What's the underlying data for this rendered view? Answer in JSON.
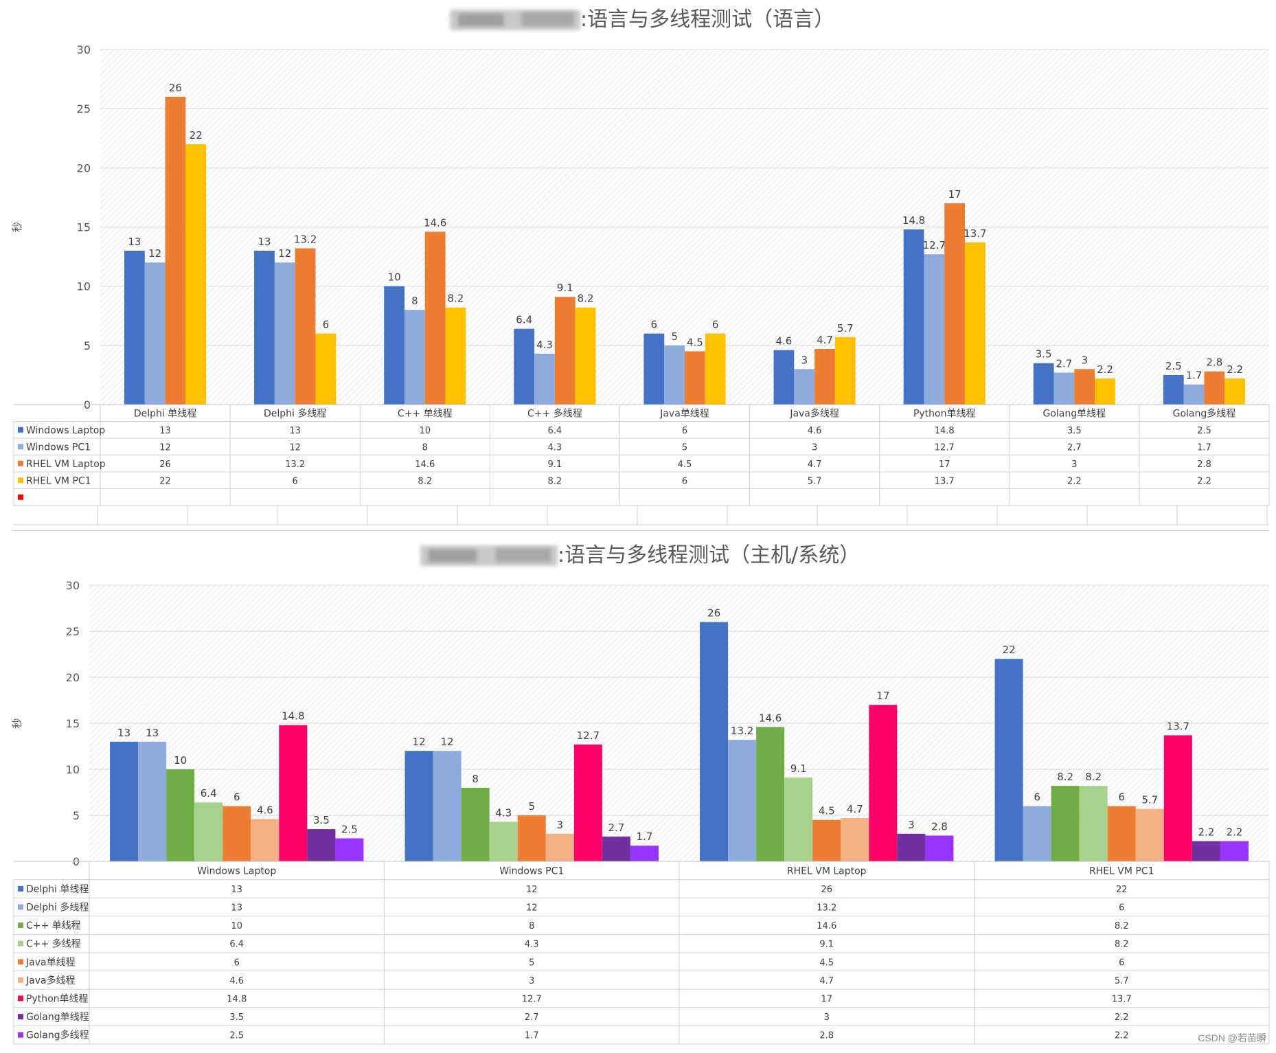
{
  "watermark": "CSDN @若苗瞬",
  "chart_data": [
    {
      "type": "bar",
      "title": ":语言与多线程测试（语言）",
      "ylabel": "秒",
      "ylim": [
        0,
        30
      ],
      "yticks": [
        0,
        5,
        10,
        15,
        20,
        25,
        30
      ],
      "grid": true,
      "legend_placement": "data-table",
      "categories": [
        "Delphi 单线程",
        "Delphi 多线程",
        "C++ 单线程",
        "C++ 多线程",
        "Java单线程",
        "Java多线程",
        "Python单线程",
        "Golang单线程",
        "Golang多线程"
      ],
      "series": [
        {
          "name": "Windows Laptop",
          "color": "#4472C4",
          "values": [
            13,
            13,
            10,
            6.4,
            6,
            4.6,
            14.8,
            3.5,
            2.5
          ]
        },
        {
          "name": "Windows PC1",
          "color": "#8FAADC",
          "values": [
            12,
            12,
            8,
            4.3,
            5,
            3,
            12.7,
            2.7,
            1.7
          ]
        },
        {
          "name": "RHEL VM Laptop",
          "color": "#ED7D31",
          "values": [
            26,
            13.2,
            14.6,
            9.1,
            4.5,
            4.7,
            17,
            3,
            2.8
          ]
        },
        {
          "name": "RHEL VM PC1",
          "color": "#FFC000",
          "values": [
            22,
            6,
            8.2,
            8.2,
            6,
            5.7,
            13.7,
            2.2,
            2.2
          ]
        }
      ],
      "extra_legend_color": "#FF0000"
    },
    {
      "type": "bar",
      "title": ":语言与多线程测试（主机/系统）",
      "ylabel": "秒",
      "ylim": [
        0,
        30
      ],
      "yticks": [
        0,
        5,
        10,
        15,
        20,
        25,
        30
      ],
      "grid": true,
      "legend_placement": "data-table",
      "categories": [
        "Windows Laptop",
        "Windows PC1",
        "RHEL VM Laptop",
        "RHEL VM PC1"
      ],
      "series": [
        {
          "name": "Delphi 单线程",
          "color": "#4472C4",
          "values": [
            13,
            12,
            26,
            22
          ]
        },
        {
          "name": "Delphi 多线程",
          "color": "#8FAADC",
          "values": [
            13,
            12,
            13.2,
            6
          ]
        },
        {
          "name": "C++ 单线程",
          "color": "#70AD47",
          "values": [
            10,
            8,
            14.6,
            8.2
          ]
        },
        {
          "name": "C++ 多线程",
          "color": "#A9D18E",
          "values": [
            6.4,
            4.3,
            9.1,
            8.2
          ]
        },
        {
          "name": "Java单线程",
          "color": "#ED7D31",
          "values": [
            6,
            5,
            4.5,
            6
          ]
        },
        {
          "name": "Java多线程",
          "color": "#F4B183",
          "values": [
            4.6,
            3,
            4.7,
            5.7
          ]
        },
        {
          "name": "Python单线程",
          "color": "#FF0066",
          "values": [
            14.8,
            12.7,
            17,
            13.7
          ]
        },
        {
          "name": "Golang单线程",
          "color": "#7030A0",
          "values": [
            3.5,
            2.7,
            3,
            2.2
          ]
        },
        {
          "name": "Golang多线程",
          "color": "#9933FF",
          "values": [
            2.5,
            1.7,
            2.8,
            2.2
          ]
        }
      ]
    }
  ]
}
